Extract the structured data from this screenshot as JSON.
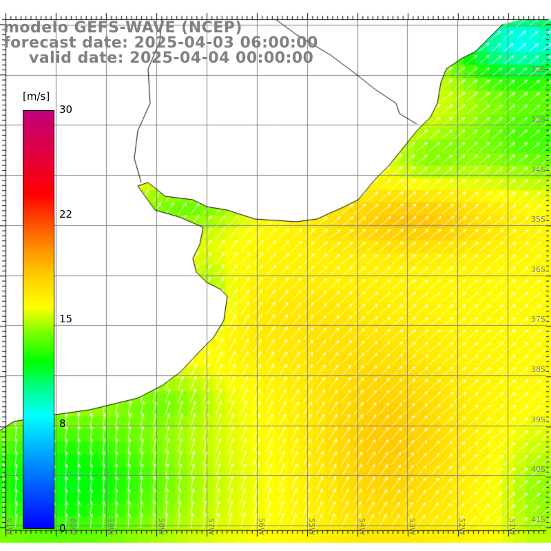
{
  "title": {
    "model": "modelo GEFS-WAVE (NCEP)",
    "forecast": "forecast date: 2025-04-03 06:00:00",
    "valid": "valid date: 2025-04-04 00:00:00"
  },
  "colorbar": {
    "unit": "[m/s]",
    "labels": [
      "30",
      "22",
      "15",
      "8",
      "0"
    ],
    "range": [
      0,
      30
    ]
  },
  "axes": {
    "lon_labels": [
      "61W",
      "60W",
      "59W",
      "58W",
      "57W",
      "56W",
      "55W",
      "54W",
      "53W",
      "52W",
      "51W"
    ],
    "lat_labels": [
      "32S",
      "33S",
      "34S",
      "35S",
      "36S",
      "37S",
      "38S",
      "39S",
      "40S",
      "41S"
    ]
  },
  "colors": {
    "text_gray": "#808080",
    "grid": "#808080",
    "land": "#ffffff",
    "arrow": "#ffffff",
    "coast": "#000000"
  }
}
